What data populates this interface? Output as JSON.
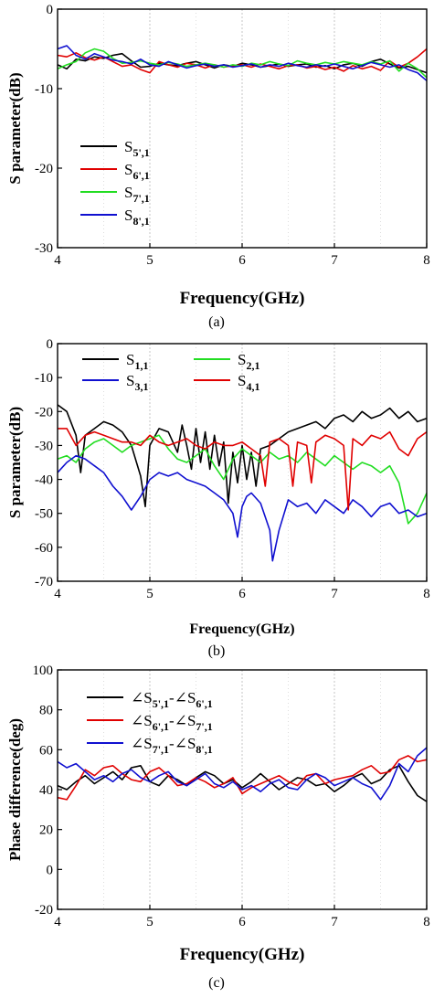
{
  "chart_data": [
    {
      "type": "line",
      "panel_label": "(a)",
      "xlabel": "Frequency(GHz)",
      "ylabel": "S parameter(dB)",
      "xlim": [
        4,
        8
      ],
      "ylim": [
        -30,
        0
      ],
      "xticks": [
        "4",
        "5",
        "6",
        "7",
        "8"
      ],
      "yticks": [
        "0",
        "-10",
        "-20",
        "-30"
      ],
      "grid": "vertical dotted",
      "legend": "lower-left",
      "series": [
        {
          "name": "S5',1",
          "label_main": "S",
          "label_sub": "5',1",
          "color": "#000000",
          "x": [
            4.0,
            4.1,
            4.2,
            4.3,
            4.4,
            4.5,
            4.6,
            4.7,
            4.8,
            4.9,
            5.0,
            5.1,
            5.2,
            5.3,
            5.4,
            5.5,
            5.6,
            5.7,
            5.8,
            5.9,
            6.0,
            6.1,
            6.2,
            6.3,
            6.4,
            6.5,
            6.6,
            6.7,
            6.8,
            6.9,
            7.0,
            7.1,
            7.2,
            7.3,
            7.4,
            7.5,
            7.6,
            7.7,
            7.8,
            7.9,
            8.0
          ],
          "y": [
            -7.0,
            -7.5,
            -6.3,
            -6.5,
            -6.0,
            -6.2,
            -5.8,
            -5.6,
            -6.5,
            -7.3,
            -7.2,
            -6.8,
            -7.0,
            -7.1,
            -6.8,
            -6.6,
            -7.0,
            -7.4,
            -7.0,
            -7.2,
            -6.8,
            -7.0,
            -7.3,
            -7.1,
            -6.9,
            -7.2,
            -7.0,
            -6.9,
            -7.3,
            -7.1,
            -7.5,
            -7.0,
            -6.8,
            -7.2,
            -6.6,
            -6.3,
            -6.9,
            -7.4,
            -7.2,
            -7.6,
            -8.0
          ]
        },
        {
          "name": "S6',1",
          "label_main": "S",
          "label_sub": "6',1",
          "color": "#e00000",
          "x": [
            4.0,
            4.1,
            4.2,
            4.3,
            4.4,
            4.5,
            4.6,
            4.7,
            4.8,
            4.9,
            5.0,
            5.1,
            5.2,
            5.3,
            5.4,
            5.5,
            5.6,
            5.7,
            5.8,
            5.9,
            6.0,
            6.1,
            6.2,
            6.3,
            6.4,
            6.5,
            6.6,
            6.7,
            6.8,
            6.9,
            7.0,
            7.1,
            7.2,
            7.3,
            7.4,
            7.5,
            7.6,
            7.7,
            7.8,
            7.9,
            8.0
          ],
          "y": [
            -5.8,
            -6.0,
            -5.5,
            -6.1,
            -6.4,
            -6.0,
            -6.6,
            -7.2,
            -7.0,
            -7.6,
            -8.0,
            -6.6,
            -7.0,
            -7.3,
            -6.8,
            -7.0,
            -7.4,
            -7.0,
            -7.3,
            -7.1,
            -7.0,
            -7.3,
            -6.9,
            -7.2,
            -7.5,
            -7.1,
            -7.0,
            -7.4,
            -7.2,
            -7.6,
            -7.3,
            -7.8,
            -7.1,
            -7.5,
            -7.2,
            -7.7,
            -6.5,
            -7.3,
            -6.8,
            -6.0,
            -5.0
          ]
        },
        {
          "name": "S7',1",
          "label_main": "S",
          "label_sub": "7',1",
          "color": "#22dd22",
          "x": [
            4.0,
            4.1,
            4.2,
            4.3,
            4.4,
            4.5,
            4.6,
            4.7,
            4.8,
            4.9,
            5.0,
            5.1,
            5.2,
            5.3,
            5.4,
            5.5,
            5.6,
            5.7,
            5.8,
            5.9,
            6.0,
            6.1,
            6.2,
            6.3,
            6.4,
            6.5,
            6.6,
            6.7,
            6.8,
            6.9,
            7.0,
            7.1,
            7.2,
            7.3,
            7.4,
            7.5,
            7.6,
            7.7,
            7.8,
            7.9,
            8.0
          ],
          "y": [
            -7.5,
            -7.0,
            -6.6,
            -5.5,
            -5.0,
            -5.3,
            -6.2,
            -6.8,
            -6.7,
            -6.5,
            -6.8,
            -7.0,
            -6.7,
            -6.9,
            -7.2,
            -7.0,
            -6.8,
            -7.0,
            -7.3,
            -7.0,
            -7.2,
            -6.8,
            -7.0,
            -6.6,
            -6.9,
            -7.1,
            -6.5,
            -6.8,
            -7.0,
            -6.7,
            -6.9,
            -6.6,
            -6.8,
            -7.0,
            -6.6,
            -6.9,
            -6.5,
            -7.8,
            -6.8,
            -7.5,
            -8.6
          ]
        },
        {
          "name": "S8',1",
          "label_main": "S",
          "label_sub": "8',1",
          "color": "#1010d0",
          "x": [
            4.0,
            4.1,
            4.2,
            4.3,
            4.4,
            4.5,
            4.6,
            4.7,
            4.8,
            4.9,
            5.0,
            5.1,
            5.2,
            5.3,
            5.4,
            5.5,
            5.6,
            5.7,
            5.8,
            5.9,
            6.0,
            6.1,
            6.2,
            6.3,
            6.4,
            6.5,
            6.6,
            6.7,
            6.8,
            6.9,
            7.0,
            7.1,
            7.2,
            7.3,
            7.4,
            7.5,
            7.6,
            7.7,
            7.8,
            7.9,
            8.0
          ],
          "y": [
            -5.0,
            -4.6,
            -5.8,
            -6.3,
            -5.6,
            -6.0,
            -6.4,
            -6.6,
            -6.9,
            -6.3,
            -7.0,
            -7.2,
            -6.6,
            -7.0,
            -7.4,
            -7.1,
            -6.9,
            -7.2,
            -7.0,
            -7.3,
            -7.1,
            -6.9,
            -7.3,
            -7.0,
            -7.2,
            -6.8,
            -7.1,
            -7.3,
            -7.0,
            -7.2,
            -6.9,
            -7.2,
            -7.5,
            -7.1,
            -6.7,
            -7.0,
            -7.3,
            -7.0,
            -7.6,
            -8.0,
            -9.0
          ]
        }
      ]
    },
    {
      "type": "line",
      "panel_label": "(b)",
      "xlabel": "Frequency(GHz)",
      "ylabel": "S parameter(dB)",
      "xlim": [
        4,
        8
      ],
      "ylim": [
        -70,
        0
      ],
      "xticks": [
        "4",
        "5",
        "6",
        "7",
        "8"
      ],
      "yticks": [
        "0",
        "-10",
        "-20",
        "-30",
        "-40",
        "-50",
        "-60",
        "-70"
      ],
      "grid": "vertical dotted",
      "legend": "top-left",
      "series": [
        {
          "name": "S1,1",
          "label_main": "S",
          "label_sub": "1,1",
          "color": "#000000",
          "x": [
            4.0,
            4.1,
            4.2,
            4.25,
            4.3,
            4.4,
            4.5,
            4.6,
            4.7,
            4.8,
            4.9,
            4.95,
            5.0,
            5.1,
            5.2,
            5.3,
            5.35,
            5.4,
            5.45,
            5.5,
            5.55,
            5.6,
            5.65,
            5.7,
            5.75,
            5.8,
            5.85,
            5.9,
            5.95,
            6.0,
            6.05,
            6.1,
            6.15,
            6.2,
            6.3,
            6.4,
            6.5,
            6.6,
            6.7,
            6.8,
            6.9,
            7.0,
            7.1,
            7.2,
            7.3,
            7.4,
            7.5,
            7.6,
            7.7,
            7.8,
            7.9,
            8.0
          ],
          "y": [
            -18,
            -20,
            -27,
            -38,
            -27,
            -25,
            -23,
            -24,
            -26,
            -30,
            -39,
            -48,
            -30,
            -25,
            -26,
            -32,
            -24,
            -30,
            -37,
            -25,
            -35,
            -26,
            -37,
            -27,
            -36,
            -29,
            -47,
            -32,
            -41,
            -30,
            -40,
            -32,
            -42,
            -31,
            -30,
            -28,
            -26,
            -25,
            -24,
            -23,
            -25,
            -22,
            -21,
            -23,
            -20,
            -22,
            -21,
            -19,
            -22,
            -20,
            -23,
            -22
          ]
        },
        {
          "name": "S2,1",
          "label_main": "S",
          "label_sub": "2,1",
          "color": "#22dd22",
          "x": [
            4.0,
            4.1,
            4.2,
            4.3,
            4.4,
            4.5,
            4.6,
            4.7,
            4.8,
            4.9,
            5.0,
            5.1,
            5.2,
            5.3,
            5.4,
            5.5,
            5.6,
            5.7,
            5.8,
            5.9,
            6.0,
            6.1,
            6.2,
            6.3,
            6.4,
            6.5,
            6.6,
            6.7,
            6.8,
            6.9,
            7.0,
            7.1,
            7.2,
            7.3,
            7.4,
            7.5,
            7.6,
            7.7,
            7.8,
            7.9,
            8.0
          ],
          "y": [
            -34,
            -33,
            -35,
            -31,
            -29,
            -28,
            -30,
            -32,
            -30,
            -29,
            -28,
            -27,
            -31,
            -34,
            -35,
            -33,
            -31,
            -36,
            -40,
            -34,
            -31,
            -33,
            -35,
            -32,
            -34,
            -33,
            -35,
            -32,
            -34,
            -36,
            -33,
            -35,
            -37,
            -35,
            -36,
            -38,
            -36,
            -41,
            -53,
            -50,
            -44
          ]
        },
        {
          "name": "S3,1",
          "label_main": "S",
          "label_sub": "3,1",
          "color": "#1010d0",
          "x": [
            4.0,
            4.1,
            4.2,
            4.3,
            4.4,
            4.5,
            4.6,
            4.7,
            4.8,
            4.9,
            5.0,
            5.1,
            5.2,
            5.3,
            5.4,
            5.5,
            5.6,
            5.7,
            5.8,
            5.9,
            5.95,
            6.0,
            6.05,
            6.1,
            6.2,
            6.3,
            6.33,
            6.4,
            6.5,
            6.6,
            6.7,
            6.8,
            6.9,
            7.0,
            7.1,
            7.2,
            7.3,
            7.4,
            7.5,
            7.6,
            7.7,
            7.8,
            7.9,
            8.0
          ],
          "y": [
            -38,
            -35,
            -33,
            -34,
            -36,
            -38,
            -42,
            -45,
            -49,
            -45,
            -40,
            -38,
            -39,
            -38,
            -40,
            -41,
            -42,
            -44,
            -46,
            -50,
            -57,
            -48,
            -45,
            -44,
            -47,
            -55,
            -64,
            -55,
            -46,
            -48,
            -47,
            -50,
            -46,
            -48,
            -50,
            -46,
            -48,
            -51,
            -48,
            -47,
            -50,
            -49,
            -51,
            -50
          ]
        },
        {
          "name": "S4,1",
          "label_main": "S",
          "label_sub": "4,1",
          "color": "#e00000",
          "x": [
            4.0,
            4.1,
            4.2,
            4.3,
            4.4,
            4.5,
            4.6,
            4.7,
            4.8,
            4.9,
            5.0,
            5.1,
            5.2,
            5.3,
            5.4,
            5.5,
            5.6,
            5.7,
            5.8,
            5.9,
            6.0,
            6.1,
            6.2,
            6.25,
            6.3,
            6.4,
            6.5,
            6.55,
            6.6,
            6.7,
            6.75,
            6.8,
            6.9,
            7.0,
            7.1,
            7.15,
            7.2,
            7.3,
            7.4,
            7.5,
            7.6,
            7.7,
            7.8,
            7.9,
            8.0
          ],
          "y": [
            -25,
            -25,
            -30,
            -27,
            -26,
            -27,
            -28,
            -29,
            -29,
            -30,
            -27,
            -29,
            -30,
            -29,
            -28,
            -30,
            -31,
            -29,
            -30,
            -30,
            -29,
            -31,
            -33,
            -42,
            -29,
            -28,
            -30,
            -42,
            -29,
            -30,
            -41,
            -29,
            -27,
            -28,
            -30,
            -49,
            -28,
            -30,
            -27,
            -28,
            -26,
            -31,
            -33,
            -28,
            -26
          ]
        }
      ]
    },
    {
      "type": "line",
      "panel_label": "(c)",
      "xlabel": "Frequency(GHz)",
      "ylabel": "Phase difference(deg)",
      "xlim": [
        4,
        8
      ],
      "ylim": [
        -20,
        100
      ],
      "xticks": [
        "4",
        "5",
        "6",
        "7",
        "8"
      ],
      "yticks": [
        "100",
        "80",
        "60",
        "40",
        "20",
        "0",
        "-20"
      ],
      "grid": "vertical dotted",
      "legend": "top-left",
      "series": [
        {
          "name": "∠S5',1-∠S6',1",
          "label_a": "5',1",
          "label_b": "6',1",
          "color": "#000000",
          "x": [
            4.0,
            4.1,
            4.2,
            4.3,
            4.4,
            4.5,
            4.6,
            4.7,
            4.8,
            4.9,
            5.0,
            5.1,
            5.2,
            5.3,
            5.4,
            5.5,
            5.6,
            5.7,
            5.8,
            5.9,
            6.0,
            6.1,
            6.2,
            6.3,
            6.4,
            6.5,
            6.6,
            6.7,
            6.8,
            6.9,
            7.0,
            7.1,
            7.2,
            7.3,
            7.4,
            7.5,
            7.6,
            7.7,
            7.8,
            7.9,
            8.0
          ],
          "y": [
            42,
            40,
            44,
            47,
            43,
            46,
            49,
            45,
            51,
            52,
            44,
            42,
            47,
            45,
            42,
            46,
            49,
            47,
            43,
            45,
            41,
            44,
            48,
            44,
            40,
            43,
            46,
            45,
            42,
            43,
            39,
            42,
            46,
            48,
            43,
            45,
            50,
            52,
            44,
            37,
            34
          ]
        },
        {
          "name": "∠S6',1-∠S7',1",
          "label_a": "6',1",
          "label_b": "7',1",
          "color": "#e00000",
          "x": [
            4.0,
            4.1,
            4.2,
            4.3,
            4.4,
            4.5,
            4.6,
            4.7,
            4.8,
            4.9,
            5.0,
            5.1,
            5.2,
            5.3,
            5.4,
            5.5,
            5.6,
            5.7,
            5.8,
            5.9,
            6.0,
            6.1,
            6.2,
            6.3,
            6.4,
            6.5,
            6.6,
            6.7,
            6.8,
            6.9,
            7.0,
            7.1,
            7.2,
            7.3,
            7.4,
            7.5,
            7.6,
            7.7,
            7.8,
            7.9,
            8.0
          ],
          "y": [
            36,
            35,
            42,
            50,
            47,
            51,
            52,
            48,
            45,
            44,
            49,
            51,
            47,
            42,
            43,
            46,
            44,
            41,
            43,
            46,
            38,
            41,
            43,
            45,
            47,
            44,
            42,
            47,
            48,
            43,
            45,
            46,
            47,
            50,
            52,
            48,
            49,
            55,
            57,
            54,
            55
          ]
        },
        {
          "name": "∠S7',1-∠S8',1",
          "label_a": "7',1",
          "label_b": "8',1",
          "color": "#1010d0",
          "x": [
            4.0,
            4.1,
            4.2,
            4.3,
            4.4,
            4.5,
            4.6,
            4.7,
            4.8,
            4.9,
            5.0,
            5.1,
            5.2,
            5.3,
            5.4,
            5.5,
            5.6,
            5.7,
            5.8,
            5.9,
            6.0,
            6.1,
            6.2,
            6.3,
            6.4,
            6.5,
            6.6,
            6.7,
            6.8,
            6.9,
            7.0,
            7.1,
            7.2,
            7.3,
            7.4,
            7.5,
            7.6,
            7.7,
            7.8,
            7.9,
            8.0
          ],
          "y": [
            54,
            51,
            53,
            49,
            45,
            47,
            44,
            48,
            50,
            46,
            44,
            47,
            49,
            44,
            42,
            45,
            48,
            43,
            41,
            44,
            40,
            42,
            39,
            43,
            45,
            41,
            40,
            45,
            48,
            46,
            42,
            44,
            46,
            43,
            41,
            35,
            42,
            53,
            49,
            57,
            61
          ]
        }
      ]
    }
  ]
}
